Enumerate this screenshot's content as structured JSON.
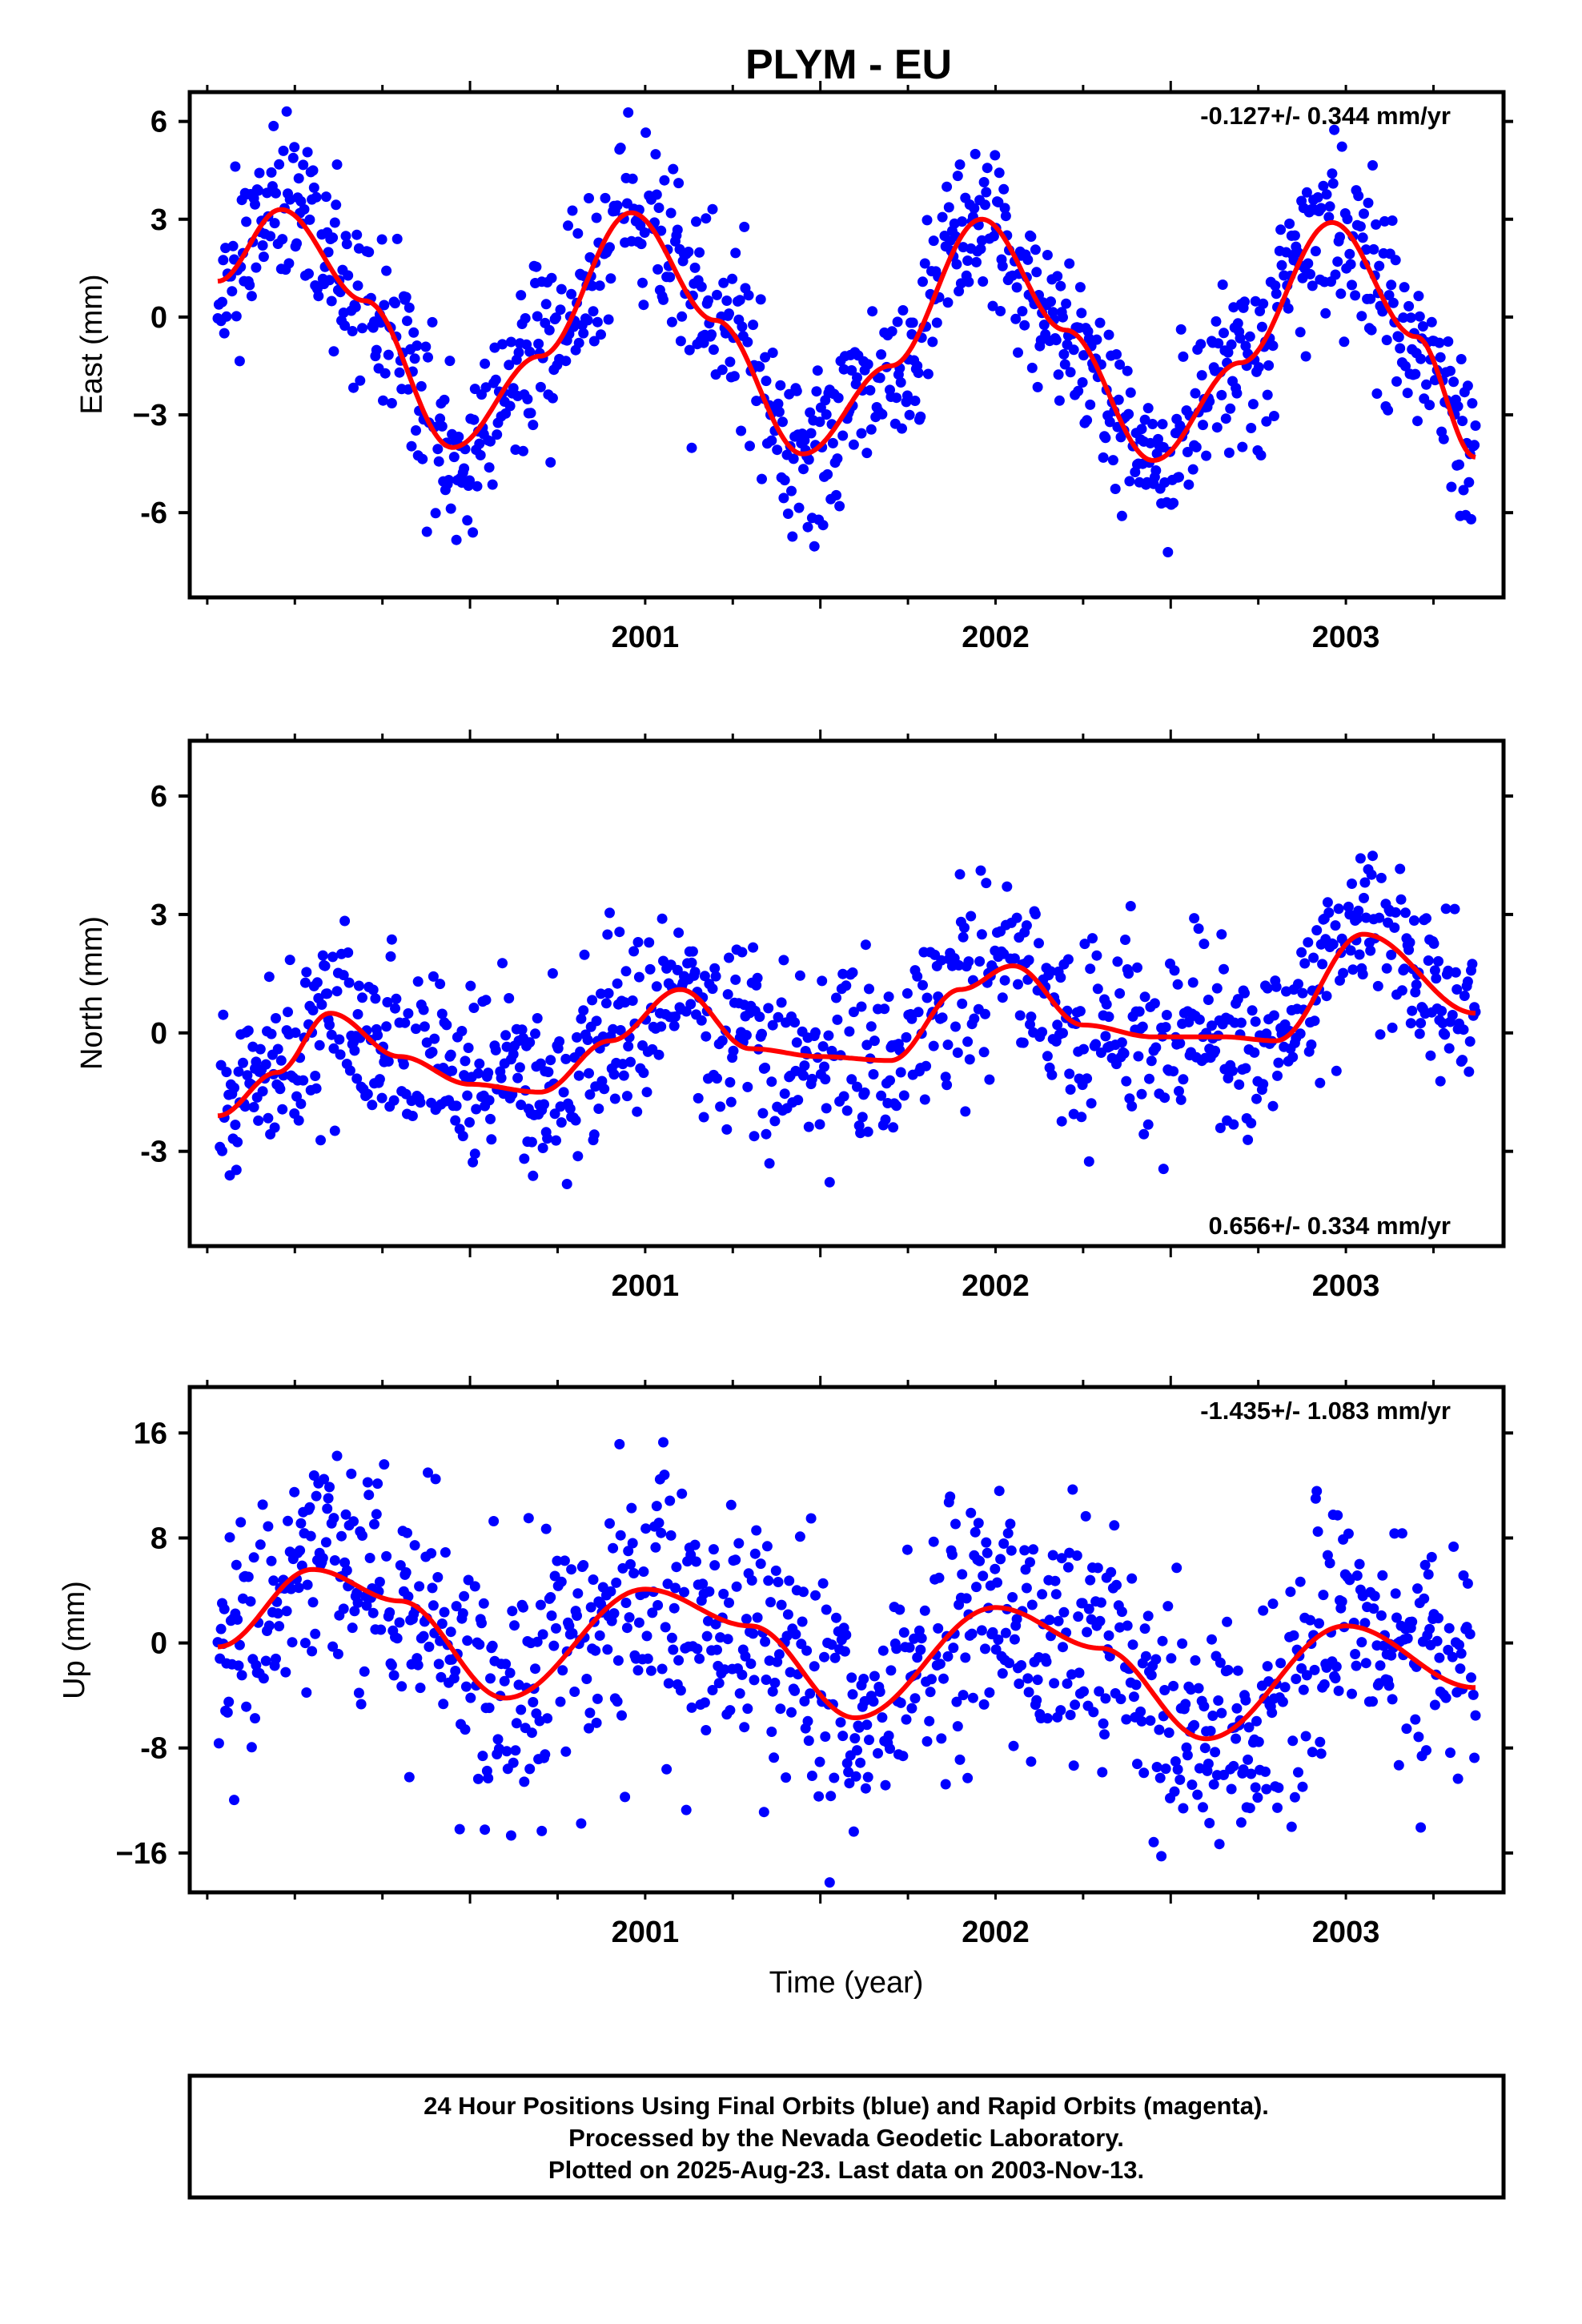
{
  "title": "PLYM - EU",
  "colors": {
    "final_orbits": "#0000ff",
    "fit_line": "#ff0000",
    "frame": "#000000"
  },
  "chart_data": [
    {
      "type": "scatter",
      "ylabel": "East (mm)",
      "rate": "-0.127+/- 0.344 mm/yr",
      "rate_placement": "top-right",
      "xlim": [
        2000.2,
        2003.95
      ],
      "ylim": [
        -8.6,
        6.9
      ],
      "xticks": [
        2001,
        2002,
        2003
      ],
      "xtick_labels": [
        "2001",
        "2002",
        "2003"
      ],
      "yticks": [
        6,
        3,
        0,
        -3,
        -6
      ],
      "ytick_labels": [
        "6",
        "3",
        "0",
        "−3",
        "-6"
      ],
      "model": {
        "mean": -0.5,
        "trend": -0.127,
        "t0": 2002.0,
        "amplitude": 3.6,
        "peak": 2000.46
      },
      "noise_sd": 1.3,
      "fit": {
        "x": [
          2000.28,
          2000.46,
          2000.7,
          2000.95,
          2001.2,
          2001.46,
          2001.7,
          2001.95,
          2002.2,
          2002.46,
          2002.7,
          2002.95,
          2003.2,
          2003.46,
          2003.7,
          2003.87
        ],
        "y": [
          1.1,
          3.3,
          0.5,
          -4.0,
          -1.2,
          3.2,
          -0.1,
          -4.2,
          -1.5,
          3.0,
          -0.4,
          -4.4,
          -1.4,
          2.9,
          -0.6,
          -4.3
        ]
      },
      "grid": false
    },
    {
      "type": "scatter",
      "ylabel": "North (mm)",
      "rate": "0.656+/- 0.334 mm/yr",
      "rate_placement": "bottom-right",
      "xlim": [
        2000.2,
        2003.95
      ],
      "ylim": [
        -5.4,
        7.4
      ],
      "xticks": [
        2001,
        2002,
        2003
      ],
      "xtick_labels": [
        "2001",
        "2002",
        "2003"
      ],
      "yticks": [
        6,
        3,
        0,
        -3
      ],
      "ytick_labels": [
        "6",
        "3",
        "0",
        "-3"
      ],
      "noise_sd": 1.15,
      "fit": {
        "x": [
          2000.28,
          2000.45,
          2000.6,
          2000.8,
          2001.0,
          2001.2,
          2001.4,
          2001.6,
          2001.8,
          2002.0,
          2002.2,
          2002.4,
          2002.55,
          2002.75,
          2002.95,
          2003.15,
          2003.3,
          2003.55,
          2003.87
        ],
        "y": [
          -2.1,
          -1.0,
          0.5,
          -0.6,
          -1.3,
          -1.5,
          -0.2,
          1.1,
          -0.4,
          -0.6,
          -0.7,
          1.1,
          1.7,
          0.2,
          -0.1,
          -0.1,
          -0.2,
          2.5,
          0.5
        ]
      },
      "grid": false
    },
    {
      "type": "scatter",
      "ylabel": "Up (mm)",
      "xlabel": "Time (year)",
      "rate": "-1.435+/- 1.083 mm/yr",
      "rate_placement": "top-right",
      "xlim": [
        2000.2,
        2003.95
      ],
      "ylim": [
        -19,
        19.5
      ],
      "xticks": [
        2001,
        2002,
        2003
      ],
      "xtick_labels": [
        "2001",
        "2002",
        "2003"
      ],
      "yticks": [
        16,
        8,
        0,
        -8,
        -16
      ],
      "ytick_labels": [
        "16",
        "8",
        "0",
        "-8",
        "−16"
      ],
      "model": {
        "mean": -1.0,
        "trend": -1.435,
        "t0": 2002.0,
        "amplitude": 5.0,
        "peak": 2000.55
      },
      "noise_sd": 4.8,
      "fit": {
        "x": [
          2000.28,
          2000.55,
          2000.8,
          2001.1,
          2001.5,
          2001.8,
          2002.1,
          2002.5,
          2002.8,
          2003.1,
          2003.5,
          2003.87
        ],
        "y": [
          -0.3,
          5.6,
          3.2,
          -4.2,
          4.1,
          1.3,
          -5.7,
          2.7,
          -0.4,
          -7.3,
          1.3,
          -3.4
        ]
      },
      "grid": false
    }
  ],
  "footer": {
    "line1": "24 Hour Positions Using Final Orbits (blue) and Rapid Orbits (magenta).",
    "line2": "Processed by the Nevada Geodetic Laboratory.",
    "line3": "Plotted on 2025-Aug-23. Last data on 2003-Nov-13."
  }
}
